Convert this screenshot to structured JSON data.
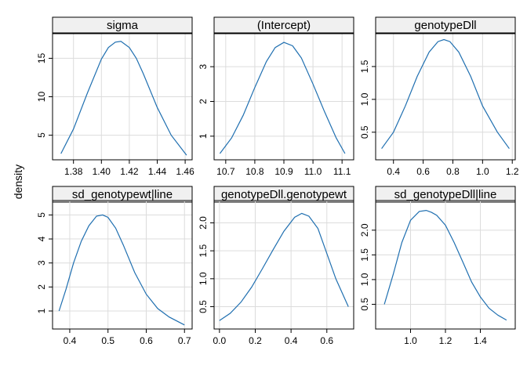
{
  "chart_data": {
    "type": "line",
    "ylabel": "density",
    "xlabel": "",
    "line_color": "#1f6fb0",
    "strip_color": "#f0f0f0",
    "grid_color": "#dcdcdc",
    "grid": true,
    "panels": [
      {
        "name": "sigma",
        "xlim": [
          1.365,
          1.465
        ],
        "ylim": [
          1.8,
          18.2
        ],
        "xticks": [
          1.38,
          1.4,
          1.42,
          1.44,
          1.46
        ],
        "xtick_labels": [
          "1.38",
          "1.40",
          "1.42",
          "1.44",
          "1.46"
        ],
        "yticks": [
          5,
          10,
          15
        ],
        "ytick_labels": [
          "5",
          "10",
          "15"
        ],
        "x": [
          1.371,
          1.38,
          1.39,
          1.4,
          1.405,
          1.41,
          1.414,
          1.42,
          1.425,
          1.43,
          1.44,
          1.45,
          1.461
        ],
        "y": [
          2.6,
          5.8,
          10.5,
          14.9,
          16.4,
          17.1,
          17.2,
          16.4,
          15.0,
          13.0,
          8.6,
          5.0,
          2.4
        ]
      },
      {
        "name": "(Intercept)",
        "xlim": [
          10.66,
          11.14
        ],
        "ylim": [
          0.32,
          3.95
        ],
        "xticks": [
          10.7,
          10.8,
          10.9,
          11.0,
          11.1
        ],
        "xtick_labels": [
          "10.7",
          "10.8",
          "10.9",
          "11.0",
          "11.1"
        ],
        "yticks": [
          1,
          2,
          3
        ],
        "ytick_labels": [
          "1",
          "2",
          "3"
        ],
        "x": [
          10.68,
          10.72,
          10.76,
          10.8,
          10.84,
          10.87,
          10.9,
          10.93,
          10.96,
          11.0,
          11.04,
          11.08,
          11.11
        ],
        "y": [
          0.5,
          0.95,
          1.6,
          2.4,
          3.15,
          3.55,
          3.7,
          3.6,
          3.25,
          2.5,
          1.7,
          0.95,
          0.5
        ]
      },
      {
        "name": "genotypeDll",
        "xlim": [
          0.28,
          1.22
        ],
        "ylim": [
          0.08,
          2.0
        ],
        "xticks": [
          0.4,
          0.6,
          0.8,
          1.0,
          1.2
        ],
        "xtick_labels": [
          "0.4",
          "0.6",
          "0.8",
          "1.0",
          "1.2"
        ],
        "yticks": [
          0.5,
          1.0,
          1.5
        ],
        "ytick_labels": [
          "0.5",
          "1.0",
          "1.5"
        ],
        "x": [
          0.32,
          0.4,
          0.48,
          0.56,
          0.64,
          0.7,
          0.74,
          0.78,
          0.84,
          0.92,
          1.0,
          1.1,
          1.18
        ],
        "y": [
          0.25,
          0.5,
          0.9,
          1.35,
          1.72,
          1.88,
          1.91,
          1.88,
          1.72,
          1.35,
          0.9,
          0.5,
          0.25
        ]
      },
      {
        "name": "sd_genotypewt|line",
        "xlim": [
          0.355,
          0.72
        ],
        "ylim": [
          0.25,
          5.6
        ],
        "xticks": [
          0.4,
          0.5,
          0.6,
          0.7
        ],
        "xtick_labels": [
          "0.4",
          "0.5",
          "0.6",
          "0.7"
        ],
        "yticks": [
          1,
          2,
          3,
          4,
          5
        ],
        "ytick_labels": [
          "1",
          "2",
          "3",
          "4",
          "5"
        ],
        "x": [
          0.372,
          0.39,
          0.41,
          0.43,
          0.45,
          0.47,
          0.486,
          0.5,
          0.52,
          0.54,
          0.57,
          0.6,
          0.63,
          0.66,
          0.7
        ],
        "y": [
          1.0,
          1.9,
          3.0,
          3.9,
          4.55,
          4.95,
          5.0,
          4.9,
          4.45,
          3.75,
          2.6,
          1.7,
          1.1,
          0.75,
          0.42
        ]
      },
      {
        "name": "genotypeDll.genotypewt",
        "xlim": [
          -0.03,
          0.75
        ],
        "ylim": [
          0.1,
          2.4
        ],
        "xticks": [
          0.0,
          0.2,
          0.4,
          0.6
        ],
        "xtick_labels": [
          "0.0",
          "0.2",
          "0.4",
          "0.6"
        ],
        "yticks": [
          0.5,
          1.0,
          1.5,
          2.0
        ],
        "ytick_labels": [
          "0.5",
          "1.0",
          "1.5",
          "2.0"
        ],
        "x": [
          0.0,
          0.06,
          0.12,
          0.18,
          0.24,
          0.3,
          0.36,
          0.42,
          0.46,
          0.5,
          0.55,
          0.6,
          0.65,
          0.72
        ],
        "y": [
          0.25,
          0.38,
          0.58,
          0.85,
          1.18,
          1.52,
          1.85,
          2.1,
          2.17,
          2.12,
          1.9,
          1.45,
          1.0,
          0.5
        ]
      },
      {
        "name": "sd_genotypeDll|line",
        "xlim": [
          0.8,
          1.6
        ],
        "ylim": [
          0.0,
          2.6
        ],
        "xticks": [
          1.0,
          1.2,
          1.4
        ],
        "xtick_labels": [
          "1.0",
          "1.2",
          "1.4"
        ],
        "yticks": [
          0.5,
          1.0,
          1.5,
          2.0
        ],
        "ytick_labels": [
          "0.5",
          "1.0",
          "1.5",
          "2.0"
        ],
        "x": [
          0.85,
          0.9,
          0.95,
          1.0,
          1.05,
          1.09,
          1.12,
          1.15,
          1.2,
          1.25,
          1.3,
          1.35,
          1.4,
          1.45,
          1.5,
          1.55
        ],
        "y": [
          0.5,
          1.1,
          1.75,
          2.2,
          2.38,
          2.4,
          2.36,
          2.3,
          2.1,
          1.75,
          1.35,
          0.95,
          0.65,
          0.42,
          0.28,
          0.18
        ]
      }
    ]
  }
}
